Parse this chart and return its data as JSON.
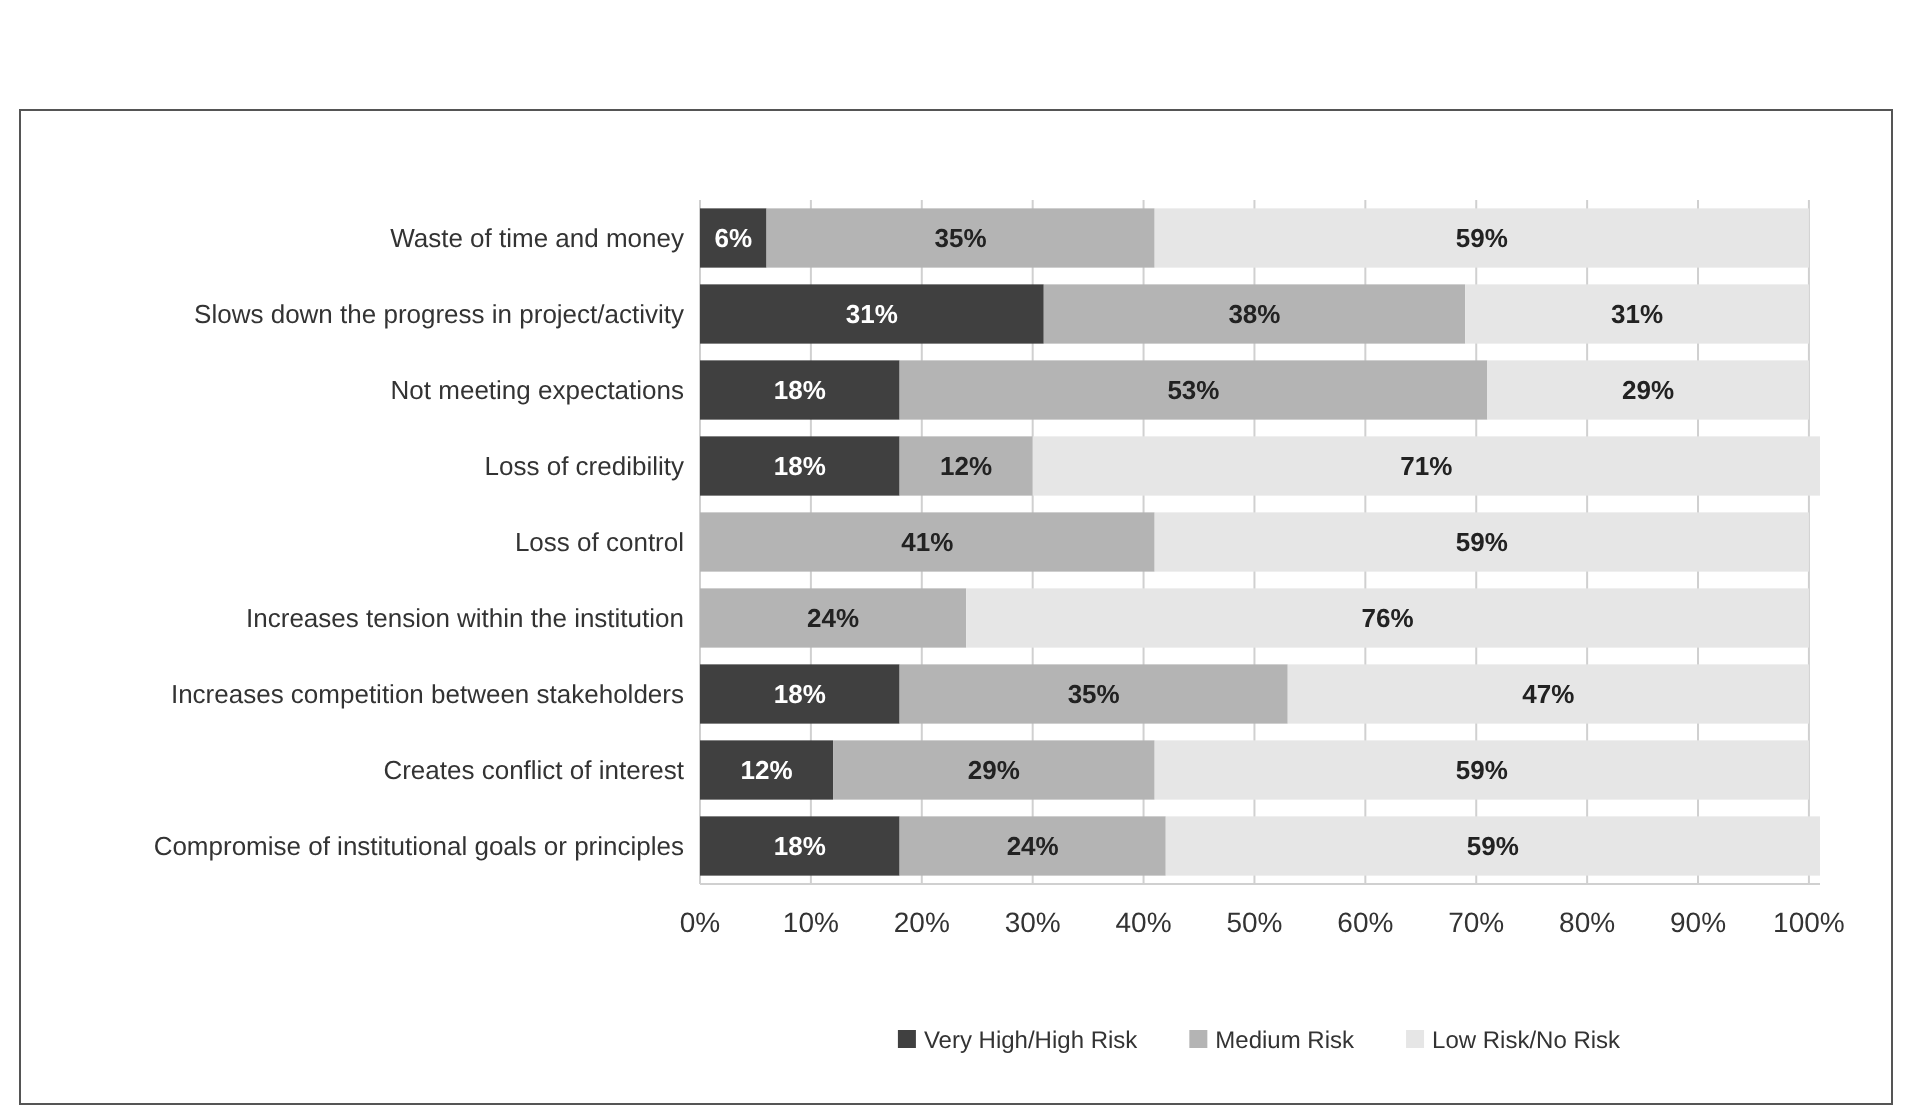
{
  "chart_data": {
    "type": "bar",
    "orientation": "horizontal",
    "stacked": true,
    "categories": [
      "Waste of time and money",
      "Slows down the progress in project/activity",
      "Not meeting expectations",
      "Loss of credibility",
      "Loss of control",
      "Increases tension within the institution",
      "Increases competition between stakeholders",
      "Creates conflict of interest",
      "Compromise of institutional goals or principles"
    ],
    "series": [
      {
        "name": "Very High/High Risk",
        "color": "#404040",
        "values": [
          6,
          31,
          18,
          18,
          null,
          null,
          18,
          12,
          18
        ],
        "value_labels": [
          "6%",
          "31%",
          "18%",
          "18%",
          null,
          null,
          "18%",
          "12%",
          "18%"
        ]
      },
      {
        "name": "Medium Risk",
        "color": "#b4b4b4",
        "values": [
          35,
          38,
          53,
          12,
          41,
          24,
          35,
          29,
          24
        ],
        "value_labels": [
          "35%",
          "38%",
          "53%",
          "12%",
          "41%",
          "24%",
          "35%",
          "29%",
          "24%"
        ]
      },
      {
        "name": "Low Risk/No Risk",
        "color": "#e6e6e6",
        "values": [
          59,
          31,
          29,
          71,
          59,
          76,
          47,
          59,
          59
        ],
        "value_labels": [
          "59%",
          "31%",
          "29%",
          "71%",
          "59%",
          "76%",
          "47%",
          "59%",
          "59%"
        ]
      }
    ],
    "xlim": [
      0,
      101
    ],
    "xticks": [
      {
        "value": 0,
        "label": "0%"
      },
      {
        "value": 10,
        "label": "10%"
      },
      {
        "value": 20,
        "label": "20%"
      },
      {
        "value": 30,
        "label": "30%"
      },
      {
        "value": 40,
        "label": "40%"
      },
      {
        "value": 50,
        "label": "50%"
      },
      {
        "value": 60,
        "label": "60%"
      },
      {
        "value": 70,
        "label": "70%"
      },
      {
        "value": 80,
        "label": "80%"
      },
      {
        "value": 90,
        "label": "90%"
      },
      {
        "value": 100,
        "label": "100%"
      }
    ],
    "grid": "x",
    "legend": "bottom"
  }
}
